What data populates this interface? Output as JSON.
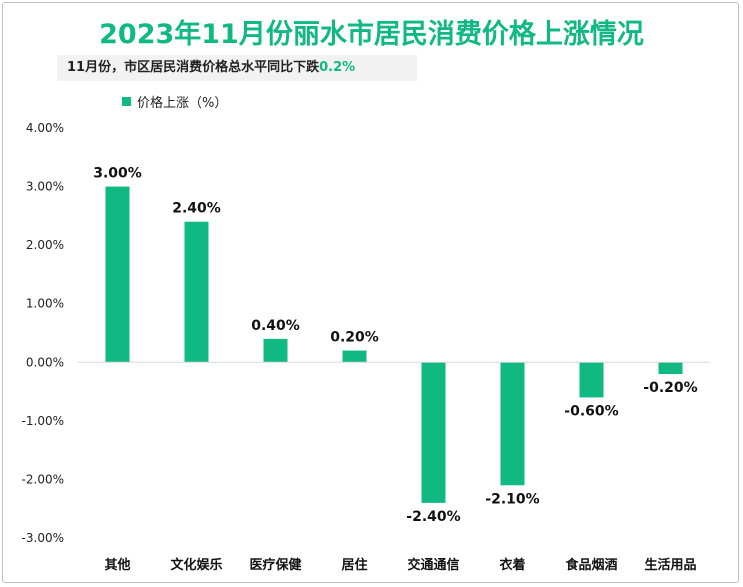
{
  "header": {
    "title": "2023年11月份丽水市居民消费价格上涨情况",
    "subtitle_prefix": "11月份，市区居民消费价格总水平同比下跌",
    "subtitle_highlight": "0.2%"
  },
  "colors": {
    "accent": "#10b981",
    "axis": "#d9d9d9"
  },
  "chart_data": {
    "type": "bar",
    "legend": "价格上涨（%）",
    "categories": [
      "其他",
      "文化娱乐",
      "医疗保健",
      "居住",
      "交通通信",
      "衣着",
      "食品烟酒",
      "生活用品"
    ],
    "series": [
      {
        "name": "价格上涨（%）",
        "values": [
          3.0,
          2.4,
          0.4,
          0.2,
          -2.4,
          -2.1,
          -0.6,
          -0.2
        ]
      }
    ],
    "data_labels": [
      "3.00%",
      "2.40%",
      "0.40%",
      "0.20%",
      "-2.40%",
      "-2.10%",
      "-0.60%",
      "-0.20%"
    ],
    "y_ticks": [
      4.0,
      3.0,
      2.0,
      1.0,
      0.0,
      -1.0,
      -2.0,
      -3.0
    ],
    "y_tick_labels": [
      "4.00%",
      "3.00%",
      "2.00%",
      "1.00%",
      "0.00%",
      "-1.00%",
      "-2.00%",
      "-3.00%"
    ],
    "ylim": [
      -3.0,
      4.0
    ],
    "grid": false,
    "legend_position": "top-left"
  }
}
